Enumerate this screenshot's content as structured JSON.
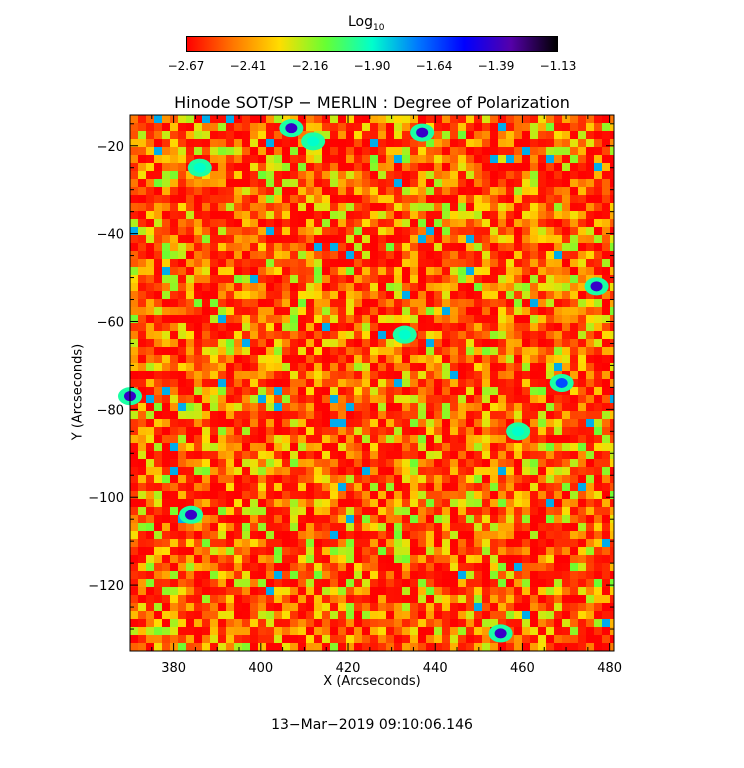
{
  "colorbar": {
    "title_main": "Log",
    "title_sub": "10",
    "tick_labels": [
      "−2.67",
      "−2.41",
      "−2.16",
      "−1.90",
      "−1.64",
      "−1.39",
      "−1.13"
    ],
    "colors": [
      "#ff0000",
      "#ff7700",
      "#ffdd00",
      "#66ff33",
      "#00ffcc",
      "#0077ff",
      "#0000ff",
      "#5500aa",
      "#000000"
    ]
  },
  "plot": {
    "title": "Hinode SOT/SP − MERLIN : Degree of Polarization",
    "xlabel": "X (Arcseconds)",
    "ylabel": "Y (Arcseconds)"
  },
  "timestamp": "13−Mar−2019 09:10:06.146",
  "chart_data": {
    "type": "heatmap",
    "title": "Hinode SOT/SP − MERLIN : Degree of Polarization",
    "xlabel": "X (Arcseconds)",
    "ylabel": "Y (Arcseconds)",
    "xlim": [
      370,
      481
    ],
    "ylim": [
      -135,
      -13
    ],
    "x_ticks": [
      380,
      400,
      420,
      440,
      460,
      480
    ],
    "x_tick_labels": [
      "380",
      "400",
      "420",
      "440",
      "460",
      "480"
    ],
    "y_ticks": [
      -20,
      -40,
      -60,
      -80,
      -100,
      -120
    ],
    "y_tick_labels": [
      "−20",
      "−40",
      "−60",
      "−80",
      "−100",
      "−120"
    ],
    "colorbar_label": "Log10",
    "colorbar_range": [
      -2.67,
      -1.13
    ],
    "dominant_value_range": [
      -2.67,
      -2.3
    ],
    "strong_polarization_features": [
      {
        "x": 437,
        "y": -17,
        "value": -1.39
      },
      {
        "x": 407,
        "y": -16,
        "value": -1.39
      },
      {
        "x": 384,
        "y": -104,
        "value": -1.39
      },
      {
        "x": 477,
        "y": -52,
        "value": -1.39
      },
      {
        "x": 455,
        "y": -131,
        "value": -1.39
      },
      {
        "x": 370,
        "y": -77,
        "value": -1.39
      },
      {
        "x": 469,
        "y": -74,
        "value": -1.64
      },
      {
        "x": 412,
        "y": -19,
        "value": -1.9
      },
      {
        "x": 433,
        "y": -63,
        "value": -1.9
      },
      {
        "x": 459,
        "y": -85,
        "value": -1.9
      },
      {
        "x": 386,
        "y": -25,
        "value": -1.9
      }
    ]
  }
}
